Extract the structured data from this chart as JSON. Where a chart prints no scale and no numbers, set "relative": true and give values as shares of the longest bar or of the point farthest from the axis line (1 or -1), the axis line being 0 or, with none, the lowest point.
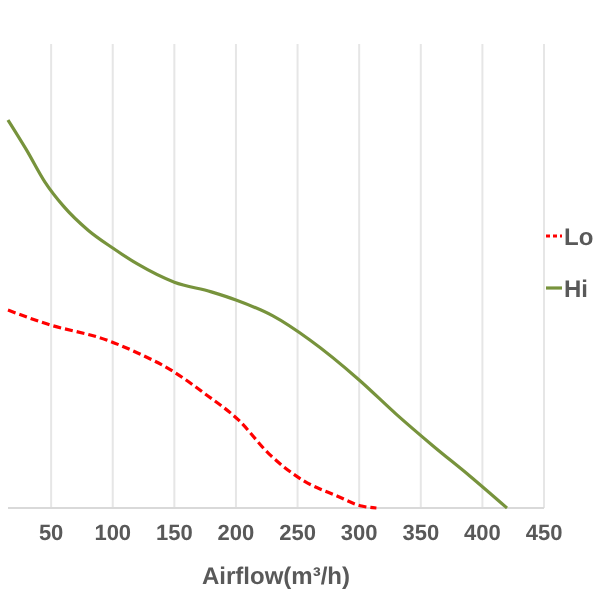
{
  "chart_data": {
    "type": "line",
    "relative": true,
    "xlabel": "Airflow(m³/h)",
    "xlim": [
      15,
      450
    ],
    "xticks": [
      50,
      100,
      150,
      200,
      250,
      300,
      350,
      400,
      450
    ],
    "grid": "x",
    "legend": "right",
    "marker": "none",
    "series": [
      {
        "name": "Lo",
        "color": "#ff0000",
        "line_style": "dashed",
        "x": [
          15,
          47,
          95,
          122,
          147,
          175,
          202,
          227,
          254,
          282,
          302,
          314
        ],
        "values": [
          0.51,
          0.474,
          0.433,
          0.397,
          0.356,
          0.294,
          0.227,
          0.139,
          0.072,
          0.031,
          0.005,
          0
        ]
      },
      {
        "name": "Hi",
        "color": "#77933c",
        "line_style": "solid",
        "x": [
          15,
          30,
          45,
          60,
          80,
          100,
          120,
          150,
          180,
          200,
          230,
          260,
          300,
          330,
          360,
          390,
          420
        ],
        "values": [
          1,
          0.923,
          0.84,
          0.778,
          0.716,
          0.67,
          0.629,
          0.582,
          0.557,
          0.536,
          0.495,
          0.433,
          0.33,
          0.242,
          0.16,
          0.082,
          0
        ]
      }
    ]
  }
}
